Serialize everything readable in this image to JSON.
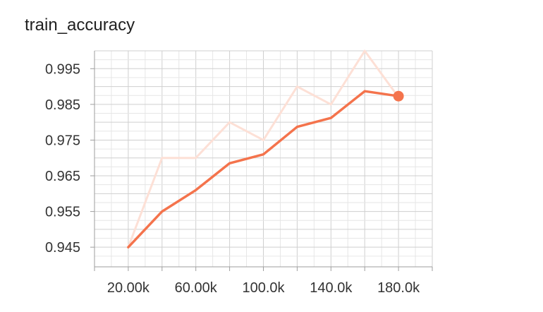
{
  "chart_data": {
    "type": "line",
    "title": "train_accuracy",
    "xlabel": "",
    "ylabel": "",
    "x": [
      20000,
      40000,
      60000,
      80000,
      100000,
      120000,
      140000,
      160000,
      180000
    ],
    "xlim": [
      0,
      200000
    ],
    "ylim": [
      0.9395,
      1.0
    ],
    "x_ticks": [
      20000,
      60000,
      100000,
      140000,
      180000
    ],
    "x_tick_labels": [
      "20.00k",
      "60.00k",
      "100.0k",
      "140.0k",
      "180.0k"
    ],
    "y_ticks": [
      0.945,
      0.955,
      0.965,
      0.975,
      0.985,
      0.995
    ],
    "y_tick_labels": [
      "0.945",
      "0.955",
      "0.965",
      "0.975",
      "0.985",
      "0.995"
    ],
    "grid": true,
    "series": [
      {
        "role": "raw",
        "color": "#fde0d6",
        "values": [
          0.945,
          0.97,
          0.97,
          0.98,
          0.975,
          0.99,
          0.985,
          1.0,
          0.987
        ]
      },
      {
        "role": "smoothed",
        "color": "#f4734c",
        "values": [
          0.945,
          0.955,
          0.961,
          0.9685,
          0.971,
          0.9787,
          0.9812,
          0.9887,
          0.9873
        ]
      }
    ]
  }
}
